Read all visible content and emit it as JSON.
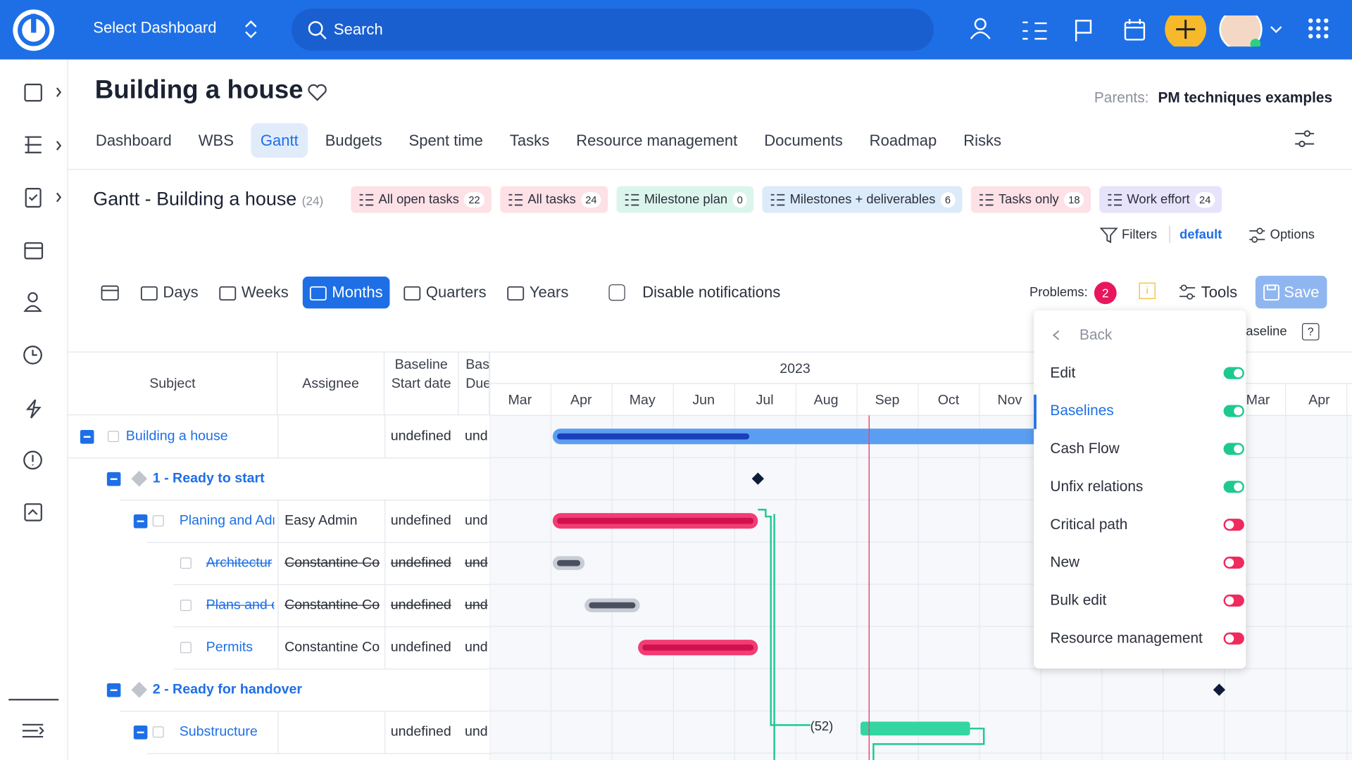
{
  "topbar": {
    "select_dashboard": "Select Dashboard",
    "search": "Search"
  },
  "header": {
    "title": "Building a house",
    "parents_label": "Parents:",
    "parents_value": "PM techniques examples"
  },
  "tabs": [
    "Dashboard",
    "WBS",
    "Gantt",
    "Budgets",
    "Spent time",
    "Tasks",
    "Resource management",
    "Documents",
    "Roadmap",
    "Risks"
  ],
  "active_tab": 2,
  "gantt": {
    "title": "Gantt - Building a house",
    "count": "(24)",
    "queries": [
      {
        "label": "All open tasks",
        "count": "22",
        "color": "#fde1e7"
      },
      {
        "label": "All tasks",
        "count": "24",
        "color": "#fde1e7"
      },
      {
        "label": "Milestone plan",
        "count": "0",
        "color": "#dcf5ec"
      },
      {
        "label": "Milestones + deliverables",
        "count": "6",
        "color": "#dcebfa"
      },
      {
        "label": "Tasks only",
        "count": "18",
        "color": "#fde1e7"
      },
      {
        "label": "Work effort",
        "count": "24",
        "color": "#e7e3fb"
      }
    ],
    "filters": "Filters",
    "filter_name": "default",
    "options": "Options",
    "zoom": [
      "Days",
      "Weeks",
      "Months",
      "Quarters",
      "Years"
    ],
    "active_zoom": 2,
    "disable_notifications": "Disable notifications",
    "problems_label": "Problems:",
    "problems_count": "2",
    "tools": "Tools",
    "save": "Save",
    "baseline": "Baseline",
    "columns": [
      "Subject",
      "Assignee",
      "Baseline Start date",
      "Bas Due"
    ],
    "year": "2023",
    "months": [
      "Mar",
      "Apr",
      "May",
      "Jun",
      "Jul",
      "Aug",
      "Sep",
      "Oct",
      "Nov"
    ],
    "months_next": [
      "Mar",
      "Apr"
    ],
    "relation_label": "(52)",
    "rows": [
      {
        "subject": "Building a house",
        "assignee": "",
        "start": "undefined",
        "due": "und"
      },
      {
        "subject": "1 - Ready to start"
      },
      {
        "subject": "Planing and Adr",
        "assignee": "Easy Admin",
        "start": "undefined",
        "due": "und"
      },
      {
        "subject": "Architectur",
        "assignee": "Constantine Co",
        "start": "undefined",
        "due": "und"
      },
      {
        "subject": "Plans and d",
        "assignee": "Constantine Co",
        "start": "undefined",
        "due": "und"
      },
      {
        "subject": "Permits",
        "assignee": "Constantine Co",
        "start": "undefined",
        "due": "und"
      },
      {
        "subject": "2 - Ready for handover"
      },
      {
        "subject": "Substructure",
        "assignee": "",
        "start": "undefined",
        "due": "und"
      }
    ]
  },
  "menu": {
    "back": "Back",
    "active": 1,
    "items": [
      {
        "label": "Edit",
        "on": true
      },
      {
        "label": "Baselines",
        "on": true
      },
      {
        "label": "Cash Flow",
        "on": true
      },
      {
        "label": "Unfix relations",
        "on": true
      },
      {
        "label": "Critical path",
        "on": false
      },
      {
        "label": "New",
        "on": false
      },
      {
        "label": "Bulk edit",
        "on": false
      },
      {
        "label": "Resource management",
        "on": false
      }
    ]
  }
}
